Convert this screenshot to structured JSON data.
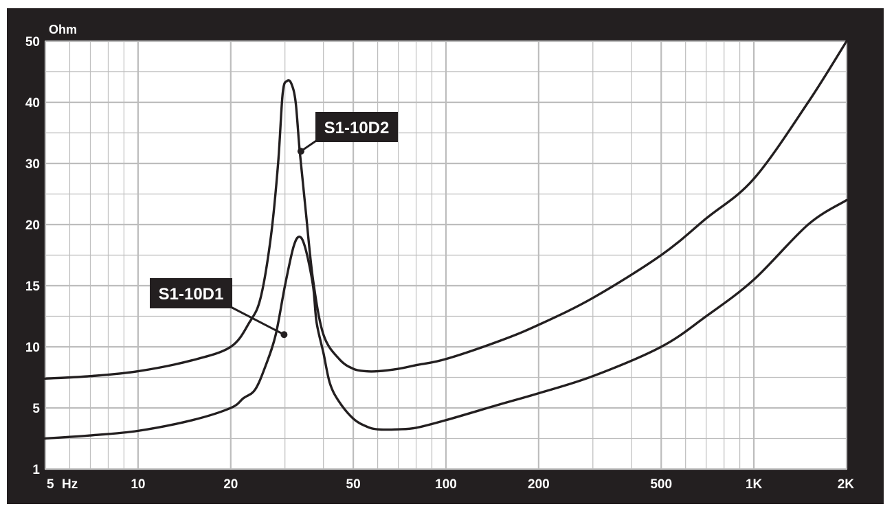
{
  "chart_data": {
    "type": "line",
    "title": "",
    "xlabel": "",
    "ylabel": "Ohm",
    "x_unit": "Hz",
    "x_scale": "log",
    "y_scale": "nonlinear",
    "xlim": [
      5,
      2000
    ],
    "ylim": [
      1,
      50
    ],
    "grid": true,
    "legend": "none",
    "x_ticks": [
      {
        "value": 5,
        "label": "5"
      },
      {
        "value": 10,
        "label": "10"
      },
      {
        "value": 20,
        "label": "20"
      },
      {
        "value": 50,
        "label": "50"
      },
      {
        "value": 100,
        "label": "100"
      },
      {
        "value": 200,
        "label": "200"
      },
      {
        "value": 500,
        "label": "500"
      },
      {
        "value": 1000,
        "label": "1K"
      },
      {
        "value": 2000,
        "label": "2K"
      }
    ],
    "y_ticks": [
      {
        "value": 1,
        "label": "1"
      },
      {
        "value": 5,
        "label": "5"
      },
      {
        "value": 10,
        "label": "10"
      },
      {
        "value": 15,
        "label": "15"
      },
      {
        "value": 20,
        "label": "20"
      },
      {
        "value": 30,
        "label": "30"
      },
      {
        "value": 40,
        "label": "40"
      },
      {
        "value": 50,
        "label": "50"
      }
    ],
    "series": [
      {
        "name": "S1-10D2",
        "x": [
          5,
          7,
          10,
          15,
          20,
          23,
          25,
          27,
          28.5,
          29.5,
          30.5,
          31.5,
          32.5,
          33.5,
          35,
          37,
          40,
          45,
          50,
          55,
          60,
          70,
          80,
          100,
          150,
          200,
          300,
          500,
          700,
          1000,
          1500,
          2000
        ],
        "y": [
          7.4,
          7.6,
          8.0,
          8.9,
          10.0,
          12.0,
          14.0,
          19.0,
          30.0,
          41.5,
          43.5,
          43.0,
          40.0,
          32.0,
          22.5,
          15.5,
          11.0,
          9.0,
          8.2,
          8.0,
          8.0,
          8.2,
          8.5,
          9.0,
          10.5,
          11.8,
          14.0,
          17.5,
          21.0,
          27.5,
          40.0,
          50.0
        ],
        "label_anchor": {
          "x": 33.8,
          "y": 32.0
        }
      },
      {
        "name": "S1-10D1",
        "x": [
          5,
          7,
          10,
          15,
          20,
          22,
          24,
          26,
          28,
          30,
          32,
          33.5,
          35,
          37,
          38,
          40,
          42,
          45,
          50,
          55,
          60,
          70,
          80,
          100,
          150,
          200,
          300,
          500,
          700,
          1000,
          1500,
          2000
        ],
        "y": [
          3.0,
          3.2,
          3.5,
          4.2,
          5.0,
          5.8,
          6.5,
          8.5,
          11.0,
          15.0,
          18.2,
          19.0,
          18.0,
          15.0,
          12.0,
          9.5,
          7.0,
          5.5,
          4.3,
          3.8,
          3.6,
          3.6,
          3.7,
          4.2,
          5.3,
          6.2,
          7.6,
          10.0,
          12.5,
          15.5,
          20.0,
          24.0
        ],
        "label_anchor": {
          "x": 29.8,
          "y": 11.0
        }
      }
    ]
  },
  "colors": {
    "background": "#231f20",
    "plot_area": "#ffffff",
    "grid": "#bdbdbd",
    "curve": "#231f20",
    "text": "#ffffff",
    "label_box": "#231f20"
  }
}
